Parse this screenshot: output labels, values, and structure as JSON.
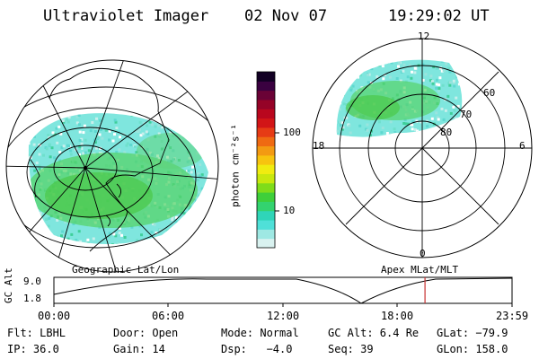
{
  "header": {
    "instrument": "Ultraviolet Imager",
    "date": "02 Nov 07",
    "time": "19:29:02 UT"
  },
  "geo_panel": {
    "label": "Geographic Lat/Lon"
  },
  "polar_panel": {
    "label": "Apex MLat/MLT",
    "mlt_labels": {
      "top": "12",
      "left": "18",
      "right": "6",
      "bottom": "0"
    },
    "lat_labels": [
      "60",
      "70",
      "80"
    ]
  },
  "colorbar": {
    "unit_label": "photon cm⁻²s⁻¹",
    "ticks": [
      "100",
      "10"
    ],
    "colors": [
      "#d9f2f0",
      "#9ee8e3",
      "#4fe0d8",
      "#2fd5b8",
      "#33d36f",
      "#3ecf3a",
      "#7fdc1a",
      "#c8e80e",
      "#f0ec10",
      "#f7c40f",
      "#f39a12",
      "#ef6a12",
      "#e63b15",
      "#d21517",
      "#b9071e",
      "#950327",
      "#6a0236",
      "#3a0140",
      "#120023"
    ]
  },
  "timeline": {
    "axis_label": "GC Alt",
    "y_ticks": [
      "9.0",
      "1.8"
    ],
    "x_ticks": [
      "00:00",
      "06:00",
      "12:00",
      "18:00",
      "23:59"
    ],
    "current_time_fraction": 0.81
  },
  "footer": {
    "row1": [
      "Flt: LBHL",
      "Door: Open",
      "Mode: Normal",
      "GC Alt: 6.4 Re",
      "GLat: −79.9"
    ],
    "row2": [
      "IP: 36.0",
      "Gain: 14",
      "Dsp:   −4.0",
      "Seq: 39",
      "GLon: 158.0"
    ]
  },
  "colors": {
    "time_marker": "#c83232"
  }
}
